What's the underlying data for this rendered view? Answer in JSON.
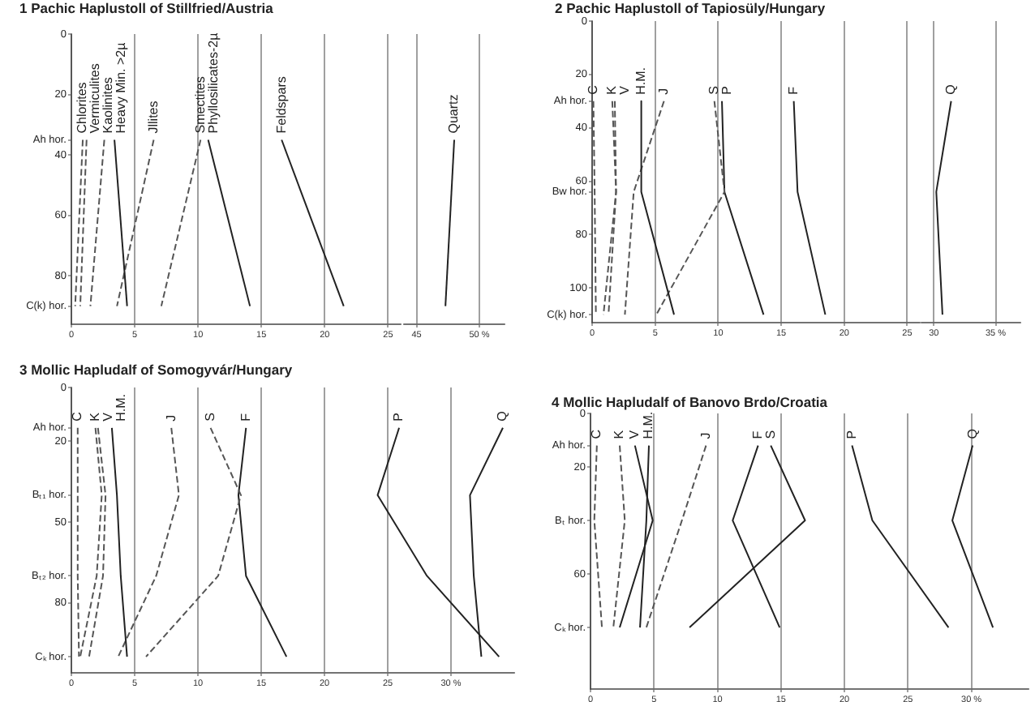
{
  "chart_data": [
    {
      "type": "line",
      "title": "1 Pachic Haplustoll of Stillfried/Austria",
      "xlim": [
        0,
        26
      ],
      "xticks": [
        0,
        5,
        10,
        15,
        20,
        25
      ],
      "ylim": [
        96,
        0
      ],
      "yticks": [
        0,
        20,
        {
          "value": 35,
          "label": "Ah hor."
        },
        40,
        60,
        80,
        {
          "value": 90,
          "label": "C(k) hor."
        }
      ],
      "grid": "x",
      "legend": false,
      "series": [
        {
          "name": "Chlorites",
          "color": "#555555",
          "line_style": "dashed",
          "x": [
            0.9,
            0.3
          ],
          "values": [
            35,
            90
          ]
        },
        {
          "name": "Vermiculites",
          "color": "#555555",
          "line_style": "dashed",
          "x": [
            1.2,
            0.7
          ],
          "values": [
            35,
            90
          ]
        },
        {
          "name": "Kaolinites",
          "color": "#555555",
          "line_style": "dashed",
          "x": [
            2.6,
            1.5
          ],
          "values": [
            35,
            90
          ]
        },
        {
          "name": "Heavy Min. >2µ",
          "color": "#222222",
          "line_style": "solid",
          "x": [
            3.4,
            4.4
          ],
          "values": [
            35,
            90
          ]
        },
        {
          "name": "Jllites",
          "color": "#555555",
          "line_style": "dashed",
          "x": [
            6.5,
            3.6
          ],
          "values": [
            35,
            90
          ]
        },
        {
          "name": "Smectites",
          "color": "#555555",
          "line_style": "dashed",
          "x": [
            10.2,
            7.1
          ],
          "values": [
            35,
            90
          ]
        },
        {
          "name": "Phyllosilicates-2µ",
          "color": "#222222",
          "line_style": "solid",
          "x": [
            10.8,
            14.1
          ],
          "values": [
            35,
            90
          ]
        },
        {
          "name": "Feldspars",
          "color": "#222222",
          "line_style": "solid",
          "x": [
            16.6,
            21.5
          ],
          "values": [
            35,
            90
          ]
        }
      ]
    },
    {
      "type": "line",
      "xlim": [
        44,
        52
      ],
      "xticks": [
        45,
        {
          "value": 50,
          "label": "50 %"
        }
      ],
      "ylim": [
        96,
        0
      ],
      "grid": "x",
      "legend": false,
      "tick_labels": "x",
      "series": [
        {
          "name": "Quartz",
          "color": "#222222",
          "line_style": "solid",
          "x": [
            48.0,
            47.3
          ],
          "values": [
            35,
            90
          ]
        }
      ]
    },
    {
      "type": "line",
      "title": "2 Pachic Haplustoll of Tapiosüly/Hungary",
      "xlim": [
        0,
        26
      ],
      "xticks": [
        0,
        5,
        10,
        15,
        20,
        25
      ],
      "ylim": [
        113,
        0
      ],
      "yticks": [
        0,
        20,
        {
          "value": 30,
          "label": "Ah hor."
        },
        40,
        60,
        {
          "value": 64,
          "label": "Bw hor."
        },
        80,
        100,
        {
          "value": 110,
          "label": "C(k) hor."
        }
      ],
      "grid": "x",
      "legend": false,
      "series": [
        {
          "name": "C",
          "color": "#555555",
          "line_style": "dashed",
          "x": [
            0.1,
            0.2,
            0.3
          ],
          "values": [
            30,
            64,
            110
          ]
        },
        {
          "name": "K",
          "color": "#555555",
          "line_style": "dashed",
          "x": [
            1.6,
            1.9,
            0.9
          ],
          "values": [
            30,
            64,
            110
          ]
        },
        {
          "name": "V",
          "color": "#555555",
          "line_style": "dashed",
          "x": [
            1.8,
            1.9,
            1.3
          ],
          "values": [
            30,
            64,
            110
          ]
        },
        {
          "name": "H.M.",
          "color": "#222222",
          "line_style": "solid",
          "x": [
            3.9,
            3.9,
            6.5
          ],
          "values": [
            30,
            64,
            110
          ]
        },
        {
          "name": "J",
          "color": "#555555",
          "line_style": "dashed",
          "x": [
            5.7,
            3.3,
            2.6
          ],
          "values": [
            30,
            64,
            110
          ]
        },
        {
          "name": "S",
          "color": "#555555",
          "line_style": "dashed",
          "x": [
            9.7,
            10.5,
            5.1
          ],
          "values": [
            30,
            64,
            110
          ]
        },
        {
          "name": "P",
          "color": "#222222",
          "line_style": "solid",
          "x": [
            10.3,
            10.5,
            13.6
          ],
          "values": [
            30,
            64,
            110
          ]
        },
        {
          "name": "F",
          "color": "#222222",
          "line_style": "solid",
          "x": [
            16.0,
            16.3,
            18.5
          ],
          "values": [
            30,
            64,
            110
          ]
        }
      ]
    },
    {
      "type": "line",
      "xlim": [
        29,
        37
      ],
      "xticks": [
        30,
        {
          "value": 35,
          "label": "35 %"
        }
      ],
      "ylim": [
        113,
        0
      ],
      "grid": "x",
      "legend": false,
      "tick_labels": "x",
      "series": [
        {
          "name": "Q",
          "color": "#222222",
          "line_style": "solid",
          "x": [
            31.4,
            30.2,
            30.7
          ],
          "values": [
            30,
            64,
            110
          ]
        }
      ]
    },
    {
      "type": "line",
      "title": "3 Mollic Hapludalf of Somogyvár/Hungary",
      "xlim": [
        0,
        35
      ],
      "xticks": [
        0,
        5,
        10,
        15,
        20,
        25,
        {
          "value": 30,
          "label": "30 %"
        }
      ],
      "ylim": [
        106,
        0
      ],
      "yticks": [
        0,
        {
          "value": 15,
          "label": "Ah hor."
        },
        20,
        {
          "value": 40,
          "label": "Bₜ₁ hor."
        },
        50,
        {
          "value": 70,
          "label": "Bₜ₂ hor."
        },
        80,
        {
          "value": 100,
          "label": "Cₖ hor."
        }
      ],
      "grid": "x",
      "legend": false,
      "series": [
        {
          "name": "C",
          "color": "#555555",
          "line_style": "dashed",
          "x": [
            0.5,
            0.5,
            0.5,
            0.6
          ],
          "values": [
            15,
            40,
            70,
            100
          ]
        },
        {
          "name": "K",
          "color": "#555555",
          "line_style": "dashed",
          "x": [
            1.9,
            2.4,
            2.0,
            0.7
          ],
          "values": [
            15,
            40,
            70,
            100
          ]
        },
        {
          "name": "V",
          "color": "#555555",
          "line_style": "dashed",
          "x": [
            2.1,
            2.7,
            2.5,
            1.4
          ],
          "values": [
            15,
            40,
            70,
            100
          ]
        },
        {
          "name": "H.M.",
          "color": "#222222",
          "line_style": "solid",
          "x": [
            3.2,
            3.6,
            3.9,
            4.4
          ],
          "values": [
            15,
            40,
            70,
            100
          ]
        },
        {
          "name": "J",
          "color": "#555555",
          "line_style": "dashed",
          "x": [
            7.9,
            8.5,
            6.7,
            3.7
          ],
          "values": [
            15,
            40,
            70,
            100
          ]
        },
        {
          "name": "S",
          "color": "#555555",
          "line_style": "dashed",
          "x": [
            11.0,
            13.4,
            11.6,
            5.9
          ],
          "values": [
            15,
            40,
            70,
            100
          ]
        },
        {
          "name": "F",
          "color": "#222222",
          "line_style": "solid",
          "x": [
            13.8,
            13.2,
            13.8,
            17.0
          ],
          "values": [
            15,
            40,
            70,
            100
          ]
        },
        {
          "name": "P",
          "color": "#222222",
          "line_style": "solid",
          "x": [
            25.9,
            24.2,
            28.1,
            33.8
          ],
          "values": [
            15,
            40,
            70,
            100
          ]
        },
        {
          "name": "Q",
          "color": "#222222",
          "line_style": "solid",
          "x": [
            34.1,
            31.5,
            31.8,
            32.4
          ],
          "values": [
            15,
            40,
            70,
            100
          ]
        }
      ]
    },
    {
      "type": "line",
      "title": "4 Mollic Hapludalf of Banovo Brdo/Croatia",
      "xlim": [
        0,
        34.5
      ],
      "xticks": [
        0,
        5,
        10,
        15,
        20,
        25,
        {
          "value": 30,
          "label": "30 %"
        }
      ],
      "ylim": [
        103,
        0
      ],
      "yticks": [
        0,
        {
          "value": 12,
          "label": "Ah hor."
        },
        20,
        {
          "value": 40,
          "label": "Bₜ hor."
        },
        60,
        {
          "value": 80,
          "label": "Cₖ hor."
        }
      ],
      "grid": "x",
      "legend": false,
      "series": [
        {
          "name": "C",
          "color": "#555555",
          "line_style": "dashed",
          "x": [
            0.5,
            0.3,
            0.9
          ],
          "values": [
            12,
            40,
            80
          ]
        },
        {
          "name": "K",
          "color": "#555555",
          "line_style": "dashed",
          "x": [
            2.3,
            2.7,
            1.8
          ],
          "values": [
            12,
            40,
            80
          ]
        },
        {
          "name": "V",
          "color": "#222222",
          "line_style": "solid",
          "x": [
            3.5,
            4.9,
            2.3
          ],
          "values": [
            12,
            40,
            80
          ]
        },
        {
          "name": "H.M.",
          "color": "#222222",
          "line_style": "solid",
          "x": [
            4.6,
            4.4,
            3.9
          ],
          "values": [
            12,
            40,
            80
          ]
        },
        {
          "name": "J",
          "color": "#555555",
          "line_style": "dashed",
          "x": [
            9.1,
            7.2,
            4.4
          ],
          "values": [
            12,
            40,
            80
          ]
        },
        {
          "name": "F",
          "color": "#222222",
          "line_style": "solid",
          "x": [
            13.2,
            11.2,
            14.9
          ],
          "values": [
            12,
            40,
            80
          ]
        },
        {
          "name": "S",
          "color": "#222222",
          "line_style": "solid",
          "x": [
            14.2,
            16.9,
            7.8
          ],
          "values": [
            12,
            40,
            80
          ]
        },
        {
          "name": "P",
          "color": "#222222",
          "line_style": "solid",
          "x": [
            20.6,
            22.2,
            28.2
          ],
          "values": [
            12,
            40,
            80
          ]
        },
        {
          "name": "Q",
          "color": "#222222",
          "line_style": "solid",
          "x": [
            30.1,
            28.5,
            31.7
          ],
          "values": [
            12,
            40,
            80
          ]
        }
      ]
    }
  ]
}
